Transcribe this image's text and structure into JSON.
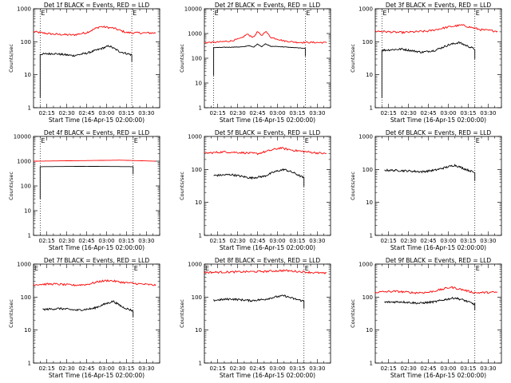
{
  "chart_data": [
    {
      "type": "line",
      "title": "Det 1f BLACK = Events, RED = LLD",
      "xlabel": "Start Time (16-Apr-15 02:00:00)",
      "ylabel": "Counts/sec",
      "yscale": "log",
      "ylim": [
        1,
        1000
      ],
      "ytick_labels": [
        "1",
        "10",
        "100",
        "1000"
      ],
      "xlim": [
        "02:05",
        "03:40"
      ],
      "xtick_labels": [
        "02:15",
        "02:30",
        "02:45",
        "03:00",
        "03:15",
        "03:30"
      ],
      "markers": [
        "02:10",
        "03:19"
      ],
      "marker_labels": [
        "E",
        "E"
      ],
      "series": [
        {
          "color": "#ff0000",
          "style": "noisy",
          "start": "02:05",
          "end": "03:37",
          "x": [
            "02:05",
            "02:20",
            "02:35",
            "02:45",
            "02:55",
            "03:05",
            "03:15",
            "03:25",
            "03:37"
          ],
          "y": [
            200,
            170,
            160,
            190,
            290,
            260,
            190,
            185,
            185
          ]
        },
        {
          "color": "#000000",
          "style": "noisy",
          "start": "02:10",
          "end": "03:19",
          "drop_start": 2,
          "drop_end": 25,
          "x": [
            "02:10",
            "02:20",
            "02:35",
            "02:45",
            "02:55",
            "03:02",
            "03:10",
            "03:19"
          ],
          "y": [
            42,
            44,
            38,
            45,
            60,
            75,
            50,
            40
          ]
        }
      ]
    },
    {
      "type": "line",
      "title": "Det 2f BLACK = Events, RED = LLD",
      "xlabel": "Start Time (16-Apr-15 02:00:00)",
      "ylabel": "Counts/sec",
      "yscale": "log",
      "ylim": [
        1,
        10000
      ],
      "ytick_labels": [
        "1",
        "10",
        "100",
        "1000",
        "10000"
      ],
      "xlim": [
        "02:05",
        "03:40"
      ],
      "xtick_labels": [
        "02:15",
        "02:30",
        "02:45",
        "03:00",
        "03:15",
        "03:30"
      ],
      "markers": [
        "02:12",
        "03:21"
      ],
      "marker_labels": [
        "E",
        "E"
      ],
      "series": [
        {
          "color": "#ff0000",
          "style": "noisy",
          "start": "02:05",
          "end": "03:37",
          "x": [
            "02:05",
            "02:15",
            "02:25",
            "02:33",
            "02:37",
            "02:42",
            "02:45",
            "02:48",
            "02:51",
            "02:55",
            "03:00",
            "03:05",
            "03:15",
            "03:37"
          ],
          "y": [
            430,
            450,
            500,
            650,
            950,
            700,
            1200,
            800,
            1250,
            700,
            600,
            500,
            440,
            430
          ]
        },
        {
          "color": "#000000",
          "style": "step",
          "start": "02:12",
          "end": "03:21",
          "drop_start": 20,
          "drop_end": 120,
          "x": [
            "02:12",
            "02:35",
            "02:38",
            "02:42",
            "02:45",
            "02:48",
            "02:51",
            "02:55",
            "03:00",
            "03:21"
          ],
          "y": [
            270,
            290,
            330,
            280,
            380,
            290,
            390,
            300,
            300,
            250
          ]
        }
      ]
    },
    {
      "type": "line",
      "title": "Det 3f BLACK = Events, RED = LLD",
      "xlabel": "Start Time (16-Apr-15 02:00:00)",
      "ylabel": "Counts/sec",
      "yscale": "log",
      "ylim": [
        1,
        1000
      ],
      "ytick_labels": [
        "1",
        "10",
        "100",
        "1000"
      ],
      "xlim": [
        "02:05",
        "03:40"
      ],
      "xtick_labels": [
        "02:15",
        "02:30",
        "02:45",
        "03:00",
        "03:15",
        "03:30"
      ],
      "markers": [
        "02:10",
        "03:20"
      ],
      "marker_labels": [
        "E",
        "E"
      ],
      "series": [
        {
          "color": "#ff0000",
          "style": "noisy",
          "start": "02:05",
          "end": "03:37",
          "x": [
            "02:05",
            "02:25",
            "02:45",
            "03:00",
            "03:10",
            "03:25",
            "03:37"
          ],
          "y": [
            210,
            190,
            210,
            280,
            320,
            230,
            210
          ]
        },
        {
          "color": "#000000",
          "style": "noisy",
          "start": "02:10",
          "end": "03:20",
          "drop_start": 2,
          "drop_end": 30,
          "x": [
            "02:10",
            "02:25",
            "02:40",
            "02:50",
            "03:00",
            "03:08",
            "03:20"
          ],
          "y": [
            55,
            60,
            48,
            55,
            80,
            95,
            60
          ]
        }
      ]
    },
    {
      "type": "line",
      "title": "Det 4f BLACK = Events, RED = LLD",
      "xlabel": "Start Time (16-Apr-15 02:00:00)",
      "ylabel": "Counts/sec",
      "yscale": "log",
      "ylim": [
        1,
        10000
      ],
      "ytick_labels": [
        "1",
        "10",
        "100",
        "1000",
        "10000"
      ],
      "xlim": [
        "02:05",
        "03:40"
      ],
      "xtick_labels": [
        "02:15",
        "02:30",
        "02:45",
        "03:00",
        "03:15",
        "03:30"
      ],
      "markers": [
        "02:10",
        "03:20"
      ],
      "marker_labels": [
        "E",
        "E"
      ],
      "series": [
        {
          "color": "#ff0000",
          "style": "smooth",
          "start": "02:05",
          "end": "03:37",
          "x": [
            "02:05",
            "02:40",
            "03:10",
            "03:37"
          ],
          "y": [
            1000,
            1050,
            1100,
            1000
          ]
        },
        {
          "color": "#000000",
          "style": "smooth",
          "start": "02:10",
          "end": "03:20",
          "drop_start": 30,
          "drop_end": 300,
          "x": [
            "02:10",
            "02:45",
            "03:20"
          ],
          "y": [
            600,
            620,
            600
          ]
        }
      ]
    },
    {
      "type": "line",
      "title": "Det 5f BLACK = Events, RED = LLD",
      "xlabel": "Start Time (16-Apr-15 02:00:00)",
      "ylabel": "Counts/sec",
      "yscale": "log",
      "ylim": [
        1,
        1000
      ],
      "ytick_labels": [
        "1",
        "10",
        "100",
        "1000"
      ],
      "xlim": [
        "02:05",
        "03:40"
      ],
      "xtick_labels": [
        "02:15",
        "02:30",
        "02:45",
        "03:00",
        "03:15",
        "03:30"
      ],
      "markers": [
        "03:20"
      ],
      "marker_labels": [
        "E"
      ],
      "series": [
        {
          "color": "#ff0000",
          "style": "noisy",
          "start": "02:05",
          "end": "03:37",
          "x": [
            "02:05",
            "02:20",
            "02:35",
            "02:45",
            "02:55",
            "03:02",
            "03:12",
            "03:25",
            "03:37"
          ],
          "y": [
            310,
            340,
            320,
            300,
            380,
            450,
            380,
            330,
            300
          ]
        },
        {
          "color": "#000000",
          "style": "noisy",
          "start": "02:12",
          "end": "03:20",
          "drop_end": 30,
          "x": [
            "02:12",
            "02:25",
            "02:40",
            "02:50",
            "02:58",
            "03:05",
            "03:12",
            "03:20"
          ],
          "y": [
            65,
            70,
            55,
            62,
            85,
            100,
            80,
            55
          ]
        }
      ]
    },
    {
      "type": "line",
      "title": "Det 6f BLACK = Events, RED = LLD",
      "xlabel": "Start Time (16-Apr-15 02:00:00)",
      "ylabel": "Counts/sec",
      "yscale": "log",
      "ylim": [
        1,
        1000
      ],
      "ytick_labels": [
        "1",
        "10",
        "100",
        "1000"
      ],
      "xlim": [
        "02:05",
        "03:40"
      ],
      "xtick_labels": [
        "02:15",
        "02:30",
        "02:45",
        "03:00",
        "03:15",
        "03:30"
      ],
      "markers": [
        "03:20"
      ],
      "marker_labels": [
        "E"
      ],
      "series": [
        {
          "color": "#000000",
          "style": "noisy",
          "start": "02:12",
          "end": "03:20",
          "drop_end": 45,
          "x": [
            "02:12",
            "02:25",
            "02:40",
            "02:50",
            "02:58",
            "03:05",
            "03:12",
            "03:20"
          ],
          "y": [
            95,
            92,
            85,
            95,
            115,
            135,
            105,
            80
          ]
        }
      ]
    },
    {
      "type": "line",
      "title": "Det 7f BLACK = Events, RED = LLD",
      "xlabel": "Start Time (16-Apr-15 02:00:00)",
      "ylabel": "Counts/sec",
      "yscale": "log",
      "ylim": [
        1,
        1000
      ],
      "ytick_labels": [
        "1",
        "10",
        "100",
        "1000"
      ],
      "xlim": [
        "02:05",
        "03:40"
      ],
      "xtick_labels": [
        "02:15",
        "02:30",
        "02:45",
        "03:00",
        "03:15",
        "03:30"
      ],
      "markers": [
        "02:05",
        "03:20"
      ],
      "marker_labels": [
        "E",
        "E"
      ],
      "series": [
        {
          "color": "#ff0000",
          "style": "noisy",
          "start": "02:05",
          "end": "03:37",
          "x": [
            "02:05",
            "02:20",
            "02:35",
            "02:45",
            "02:55",
            "03:02",
            "03:12",
            "03:25",
            "03:37"
          ],
          "y": [
            240,
            250,
            230,
            240,
            300,
            320,
            280,
            250,
            230
          ]
        },
        {
          "color": "#000000",
          "style": "noisy",
          "start": "02:12",
          "end": "03:20",
          "drop_end": 25,
          "x": [
            "02:12",
            "02:25",
            "02:38",
            "02:50",
            "02:58",
            "03:05",
            "03:12",
            "03:20"
          ],
          "y": [
            42,
            45,
            40,
            45,
            60,
            75,
            50,
            38
          ]
        }
      ]
    },
    {
      "type": "line",
      "title": "Det 8f BLACK = Events, RED = LLD",
      "xlabel": "Start Time (16-Apr-15 02:00:00)",
      "ylabel": "Counts/sec",
      "yscale": "log",
      "ylim": [
        1,
        1000
      ],
      "ytick_labels": [
        "1",
        "10",
        "100",
        "1000"
      ],
      "xlim": [
        "02:05",
        "03:40"
      ],
      "xtick_labels": [
        "02:15",
        "02:30",
        "02:45",
        "03:00",
        "03:15",
        "03:30"
      ],
      "markers": [
        "02:05",
        "03:20"
      ],
      "marker_labels": [
        "E",
        "E"
      ],
      "series": [
        {
          "color": "#ff0000",
          "style": "noisy",
          "start": "02:05",
          "end": "03:37",
          "x": [
            "02:05",
            "02:30",
            "02:50",
            "03:05",
            "03:20",
            "03:37"
          ],
          "y": [
            560,
            580,
            600,
            640,
            580,
            520
          ]
        },
        {
          "color": "#000000",
          "style": "noisy",
          "start": "02:12",
          "end": "03:20",
          "drop_end": 45,
          "x": [
            "02:12",
            "02:25",
            "02:40",
            "02:50",
            "02:58",
            "03:05",
            "03:12",
            "03:20"
          ],
          "y": [
            80,
            88,
            78,
            85,
            100,
            110,
            90,
            75
          ]
        }
      ]
    },
    {
      "type": "line",
      "title": "Det 9f BLACK = Events, RED = LLD",
      "xlabel": "Start Time (16-Apr-15 02:00:00)",
      "ylabel": "Counts/sec",
      "yscale": "log",
      "ylim": [
        1,
        1000
      ],
      "ytick_labels": [
        "1",
        "10",
        "100",
        "1000"
      ],
      "xlim": [
        "02:05",
        "03:40"
      ],
      "xtick_labels": [
        "02:15",
        "02:30",
        "02:45",
        "03:00",
        "03:15",
        "03:30"
      ],
      "markers": [
        "03:20"
      ],
      "marker_labels": [
        "E"
      ],
      "series": [
        {
          "color": "#ff0000",
          "style": "noisy",
          "start": "02:05",
          "end": "03:37",
          "x": [
            "02:05",
            "02:20",
            "02:35",
            "02:45",
            "02:55",
            "03:02",
            "03:10",
            "03:20",
            "03:37"
          ],
          "y": [
            140,
            150,
            135,
            140,
            170,
            200,
            170,
            135,
            140
          ]
        },
        {
          "color": "#000000",
          "style": "noisy",
          "start": "02:12",
          "end": "03:20",
          "drop_end": 40,
          "x": [
            "02:12",
            "02:25",
            "02:38",
            "02:50",
            "02:58",
            "03:05",
            "03:12",
            "03:20"
          ],
          "y": [
            70,
            72,
            65,
            72,
            85,
            95,
            80,
            60
          ]
        }
      ]
    }
  ]
}
